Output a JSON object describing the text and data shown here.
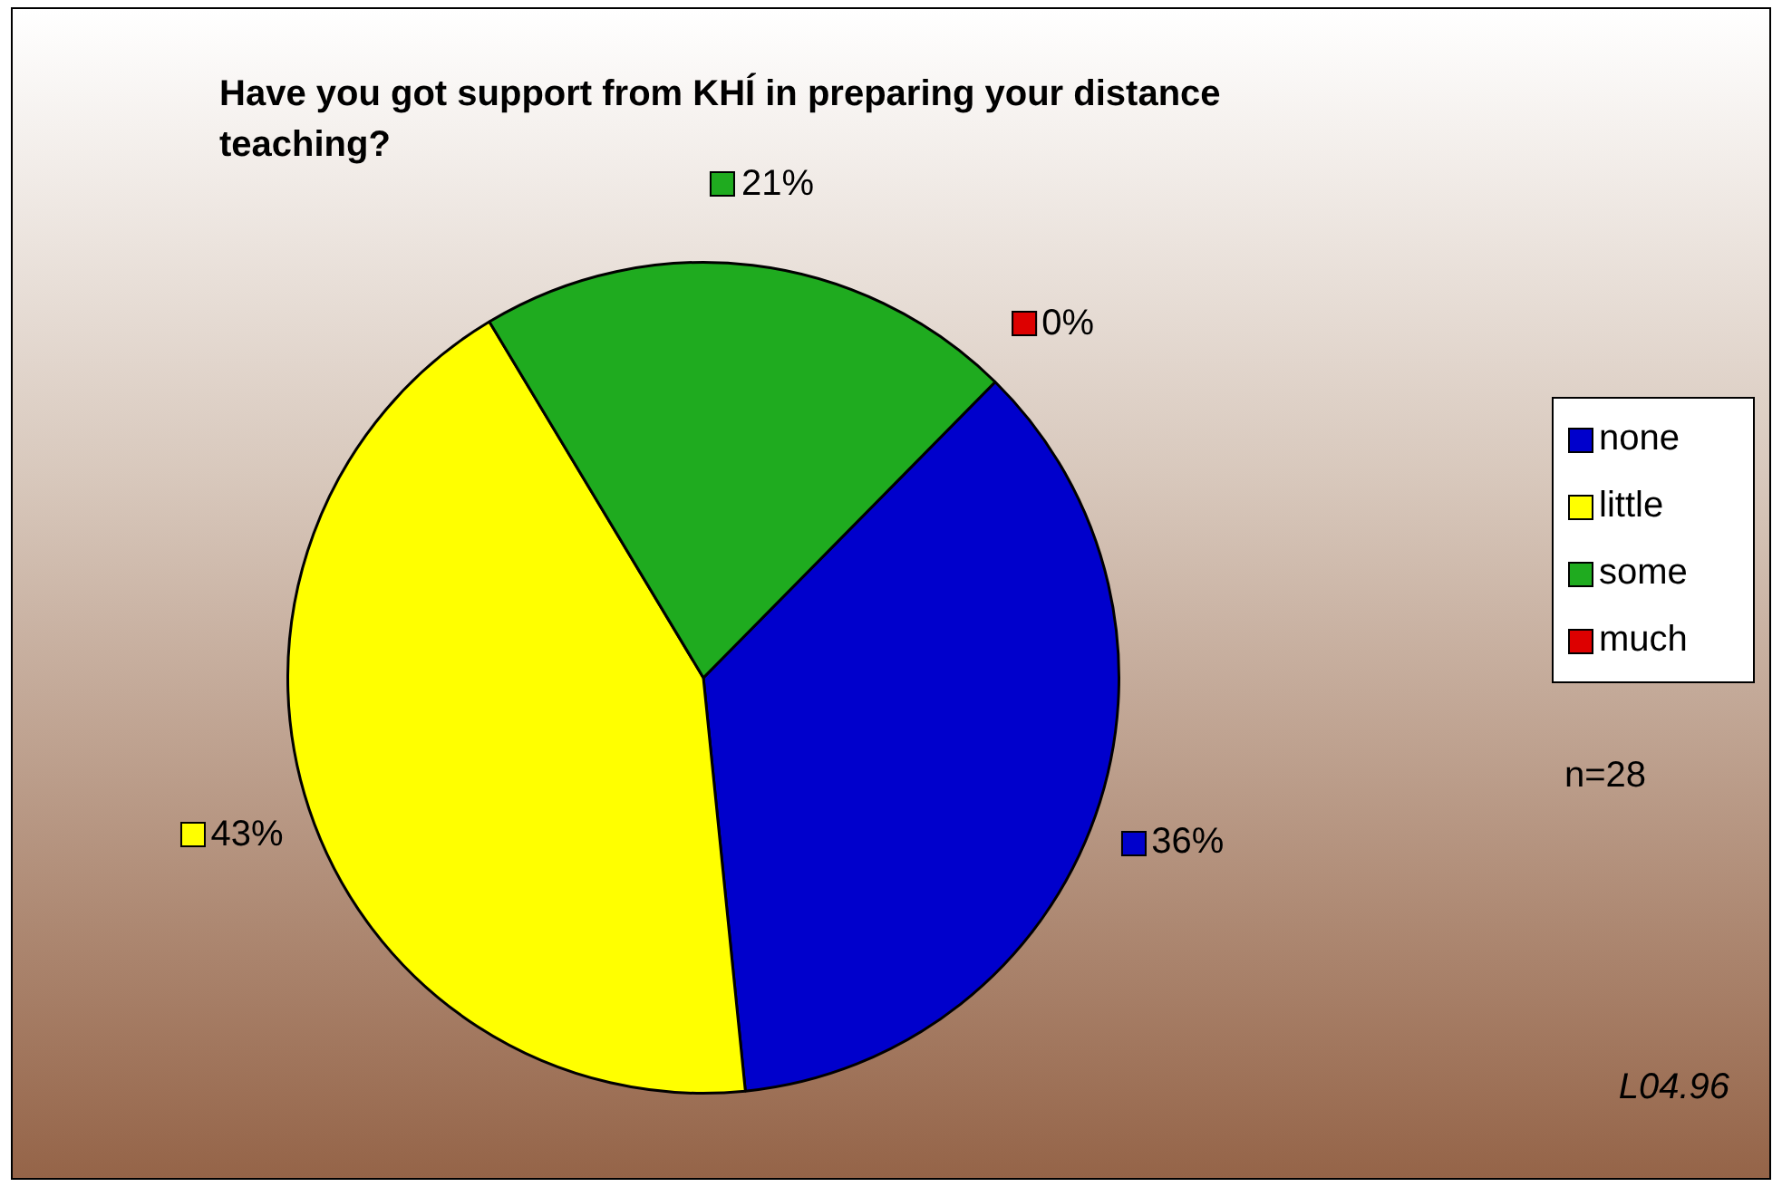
{
  "chart_data": {
    "type": "pie",
    "title": "Have you got support from KHÍ in preparing your distance teaching?",
    "categories": [
      "none",
      "little",
      "some",
      "much"
    ],
    "values": [
      36,
      43,
      21,
      0
    ],
    "colors": [
      "#0000cc",
      "#ffff00",
      "#1fab1f",
      "#dd0000"
    ],
    "value_labels": [
      "36%",
      "43%",
      "21%",
      "0%"
    ],
    "legend": "right",
    "annotations": [
      "n=28",
      "L04.96"
    ]
  }
}
